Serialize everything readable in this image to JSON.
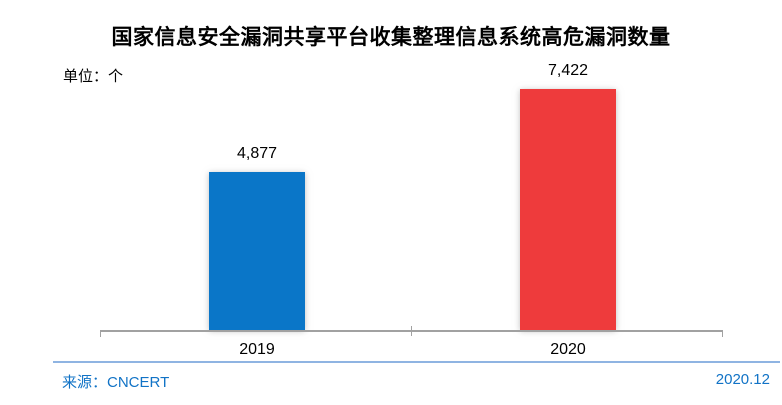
{
  "chart_data": {
    "type": "bar",
    "title": "国家信息安全漏洞共享平台收集整理信息系统高危漏洞数量",
    "unit_label": "单位：个",
    "categories": [
      "2019",
      "2020"
    ],
    "values": [
      4877,
      7422
    ],
    "value_labels": [
      "4,877",
      "7,422"
    ],
    "bar_colors": [
      "#0a76c8",
      "#ee3b3c"
    ],
    "xlabel": "",
    "ylabel": "",
    "ylim": [
      0,
      7800
    ],
    "grid": false,
    "legend": "none",
    "axis_color": "#a1a1a1"
  },
  "footer": {
    "source_label": "来源：CNCERT",
    "date_label": "2020.12",
    "accent_color": "#1173c6",
    "divider_color": "#8fb4e2"
  }
}
